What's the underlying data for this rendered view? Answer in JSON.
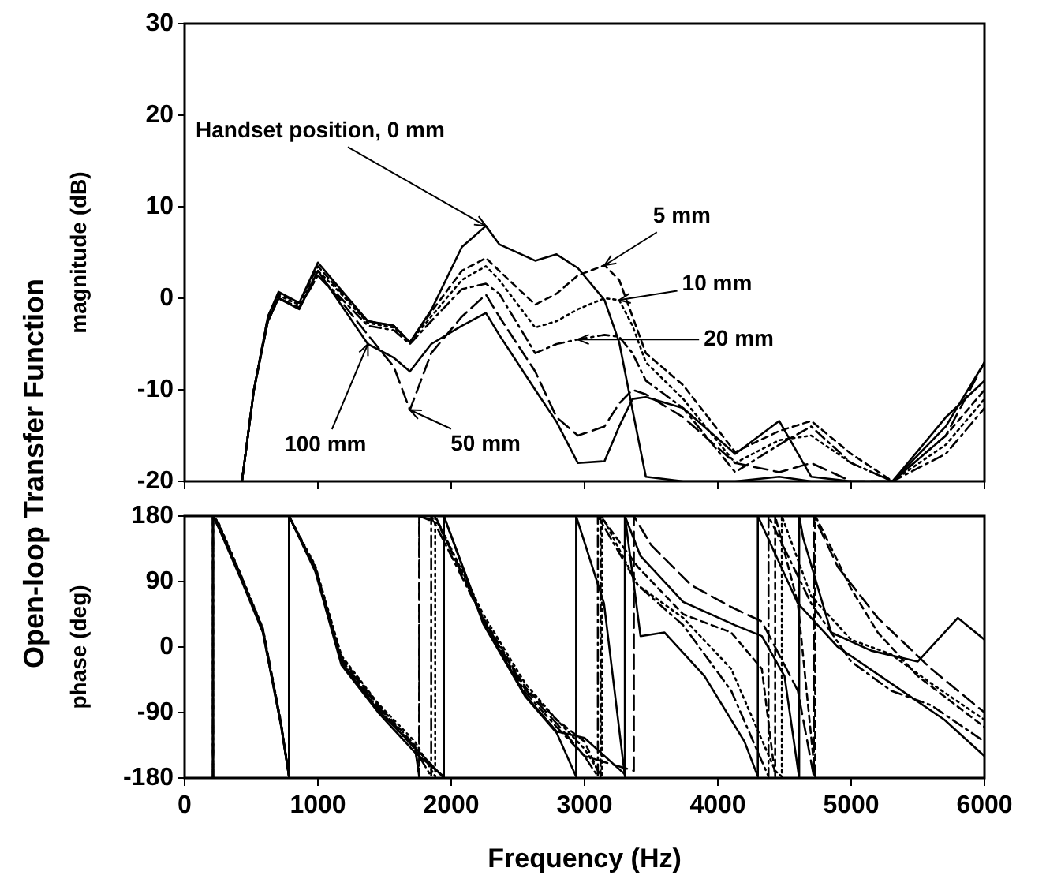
{
  "chart_data": [
    {
      "type": "line",
      "ylabel": "magnitude (dB)",
      "marker": "none",
      "tick_labels": "y",
      "xlim": [
        0,
        6000
      ],
      "xticks": [
        0,
        1000,
        2000,
        3000,
        4000,
        5000,
        6000
      ],
      "ylim": [
        -20,
        30
      ],
      "yticks": [
        -20,
        -10,
        0,
        10,
        20,
        30
      ],
      "x": [
        430,
        520,
        625,
        705,
        860,
        1000,
        1140,
        1375,
        1570,
        1690,
        1850,
        2080,
        2260,
        2360,
        2630,
        2790,
        2950,
        3150,
        3260,
        3360,
        3460,
        3740,
        4130,
        4460,
        4700,
        5000,
        5310,
        5710,
        6000
      ],
      "series": [
        {
          "color": "#000000",
          "line_style": "solid",
          "values": [
            -20,
            -10,
            -2,
            0.7,
            -0.5,
            3.9,
            1.5,
            -2.5,
            -3,
            -4.8,
            -1.3,
            5.6,
            7.9,
            5.9,
            4.1,
            4.8,
            3.3,
            -0.2,
            -4.8,
            -12.2,
            -19.5,
            -20,
            -20,
            -19.5,
            -20,
            -20,
            -20,
            -13,
            -9
          ]
        },
        {
          "color": "#000000",
          "line_style": "dashed",
          "values": [
            -20,
            -10,
            -2,
            0.5,
            -0.5,
            3.5,
            1.2,
            -2.5,
            -3,
            -4.8,
            -1.5,
            3,
            4.4,
            3,
            -0.7,
            0.5,
            2.5,
            3.6,
            2,
            -2,
            -6,
            -9.5,
            -16.8,
            -14.5,
            -13.4,
            -17,
            -20,
            -15,
            -10
          ]
        },
        {
          "color": "#000000",
          "line_style": "dotted",
          "values": [
            -20,
            -10,
            -2.2,
            0.3,
            -0.7,
            3,
            1,
            -2.7,
            -3.2,
            -4.8,
            -2,
            2,
            3.5,
            2,
            -3.2,
            -2.5,
            -1.2,
            0,
            -0.2,
            -3,
            -7,
            -11,
            -18,
            -15.5,
            -15,
            -18,
            -20,
            -16,
            -11
          ]
        },
        {
          "color": "#000000",
          "line_style": "dashdot",
          "values": [
            -20,
            -10,
            -2.5,
            0,
            -1,
            2.5,
            0.5,
            -3,
            -3.5,
            -5,
            -2.5,
            1,
            1.6,
            0.5,
            -6,
            -5,
            -4.5,
            -4,
            -4.2,
            -6,
            -9,
            -12,
            -19,
            -16,
            -14,
            -18,
            -20,
            -17,
            -12
          ]
        },
        {
          "color": "#000000",
          "line_style": "longdash",
          "values": [
            -20,
            -10,
            -2.5,
            0,
            -1,
            2.5,
            0.3,
            -4,
            -7.5,
            -12.2,
            -6,
            -2,
            0.4,
            -2,
            -8,
            -13,
            -15,
            -14,
            -11.5,
            -10,
            -10.5,
            -13,
            -18,
            -19,
            -18,
            -20,
            -20,
            -15,
            -7
          ]
        },
        {
          "color": "#000000",
          "line_style": "solid",
          "values": [
            -20,
            -10,
            -2.5,
            0,
            -1.2,
            3,
            0,
            -5,
            -6.5,
            -8,
            -5,
            -3,
            -1.6,
            -4,
            -10,
            -13.5,
            -18,
            -17.8,
            -14,
            -11,
            -10.8,
            -12,
            -17,
            -13.4,
            -19.5,
            -20,
            -20,
            -14,
            -7
          ]
        }
      ],
      "annotations": [
        {
          "text": "Handset position, 0 mm",
          "x": 2260,
          "y": 7.9
        },
        {
          "text": "5 mm",
          "x": 3150,
          "y": 3.6
        },
        {
          "text": "10 mm",
          "x": 3260,
          "y": -0.2
        },
        {
          "text": "20 mm",
          "x": 2950,
          "y": -4.5
        },
        {
          "text": "100 mm",
          "x": 1375,
          "y": -5
        },
        {
          "text": "50 mm",
          "x": 1690,
          "y": -12.2
        },
        "Open-loop Transfer Function"
      ]
    },
    {
      "type": "line",
      "xlabel": "Frequency (Hz)",
      "ylabel": "phase (deg)",
      "marker": "none",
      "xlim": [
        0,
        6000
      ],
      "xticks": [
        0,
        1000,
        2000,
        3000,
        4000,
        5000,
        6000
      ],
      "ylim": [
        -180,
        180
      ],
      "yticks": [
        -180,
        -90,
        0,
        90,
        180
      ],
      "series": [
        {
          "color": "#000000",
          "line_style": "solid",
          "x": [
            213,
            213,
            252,
            430,
            587,
            724,
            783,
            783,
            980,
            1177,
            1453,
            1728,
            1945,
            1945,
            2240,
            2555,
            2791,
            3000,
            3303,
            3303,
            3420,
            3740,
            4130,
            4330,
            4500,
            4610,
            4610,
            4640,
            4850,
            5150,
            5500,
            5800,
            6000
          ],
          "values": [
            -180,
            180,
            170,
            93,
            21,
            -109,
            -178,
            180,
            108,
            -22,
            -87,
            -138,
            -180,
            180,
            35,
            -66,
            -116,
            -125,
            -175,
            180,
            125,
            62,
            30,
            15,
            -40,
            -180,
            180,
            150,
            20,
            -5,
            -20,
            40,
            10
          ]
        },
        {
          "color": "#000000",
          "line_style": "dashed",
          "x": [
            213,
            213,
            252,
            430,
            587,
            724,
            783,
            783,
            980,
            1177,
            1453,
            1728,
            1760,
            1760,
            1900,
            2240,
            2555,
            2791,
            3000,
            3120,
            3120,
            3400,
            3740,
            4100,
            4330,
            4430,
            4430,
            4600,
            4730,
            4730,
            4760,
            5000,
            5200,
            5500,
            6000
          ],
          "values": [
            -180,
            180,
            170,
            95,
            25,
            -105,
            -178,
            180,
            110,
            -15,
            -80,
            -135,
            -178,
            180,
            170,
            40,
            -55,
            -100,
            -130,
            -178,
            180,
            110,
            45,
            20,
            -30,
            -178,
            180,
            60,
            -178,
            180,
            170,
            80,
            20,
            -40,
            -110
          ]
        },
        {
          "color": "#000000",
          "line_style": "dotted",
          "x": [
            213,
            213,
            252,
            430,
            587,
            724,
            783,
            783,
            980,
            1177,
            1453,
            1728,
            1880,
            1880,
            2240,
            2555,
            2791,
            3000,
            3130,
            3130,
            3400,
            3740,
            4100,
            4430,
            4480,
            4480,
            4700,
            5000,
            5300,
            5600,
            6000
          ],
          "values": [
            -180,
            180,
            172,
            96,
            26,
            -104,
            -178,
            180,
            112,
            -12,
            -78,
            -130,
            -178,
            180,
            45,
            -50,
            -100,
            -140,
            -178,
            180,
            85,
            40,
            -30,
            -170,
            -178,
            180,
            70,
            10,
            -10,
            -50,
            -100
          ]
        },
        {
          "color": "#000000",
          "line_style": "dashdot",
          "x": [
            213,
            213,
            252,
            430,
            587,
            724,
            783,
            783,
            980,
            1177,
            1453,
            1728,
            1850,
            1850,
            2240,
            2555,
            2791,
            3000,
            3100,
            3100,
            3400,
            3740,
            4100,
            4380,
            4380,
            4700,
            5000,
            5300,
            5600,
            6000
          ],
          "values": [
            -180,
            180,
            168,
            92,
            22,
            -106,
            -178,
            180,
            106,
            -20,
            -85,
            -140,
            -178,
            180,
            38,
            -62,
            -110,
            -150,
            -178,
            180,
            85,
            30,
            -60,
            -178,
            180,
            60,
            -20,
            -60,
            -80,
            -130
          ]
        },
        {
          "color": "#000000",
          "line_style": "longdash",
          "x": [
            213,
            213,
            252,
            430,
            587,
            724,
            783,
            783,
            980,
            1177,
            1453,
            1728,
            1760,
            1760,
            1900,
            2240,
            2555,
            2791,
            3000,
            3370,
            3370,
            3500,
            3800,
            4100,
            4330,
            4600,
            4720,
            4720,
            4900,
            5200,
            5600,
            6000
          ],
          "values": [
            -180,
            180,
            168,
            94,
            24,
            -106,
            -178,
            180,
            108,
            -18,
            -82,
            -138,
            -178,
            180,
            172,
            38,
            -58,
            -105,
            -150,
            -170,
            180,
            140,
            85,
            55,
            35,
            -60,
            -178,
            180,
            110,
            40,
            -30,
            -90
          ]
        },
        {
          "color": "#000000",
          "line_style": "solid",
          "x": [
            213,
            213,
            252,
            430,
            587,
            724,
            783,
            783,
            980,
            1177,
            1453,
            1728,
            1945,
            1945,
            2240,
            2555,
            2791,
            2937,
            2937,
            3146,
            3303,
            3303,
            3420,
            3600,
            3900,
            4200,
            4300,
            4300,
            4600,
            4900,
            5300,
            5700,
            6000
          ],
          "values": [
            -180,
            180,
            165,
            90,
            20,
            -108,
            -178,
            180,
            104,
            -25,
            -90,
            -145,
            -178,
            180,
            32,
            -68,
            -118,
            -178,
            180,
            60,
            -178,
            180,
            15,
            20,
            -40,
            -130,
            -178,
            180,
            60,
            0,
            -50,
            -100,
            -150
          ]
        }
      ]
    }
  ]
}
